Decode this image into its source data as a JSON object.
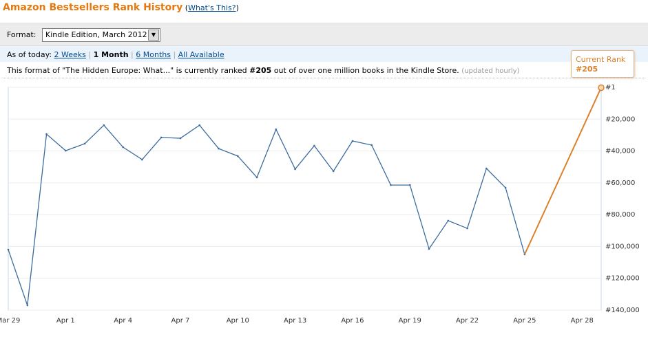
{
  "header": {
    "title": "Amazon Bestsellers Rank History",
    "link_open": "(",
    "link": "What's This?",
    "link_close": ")"
  },
  "format": {
    "label": "Format:",
    "selected": "Kindle Edition, March 2012"
  },
  "range": {
    "label": "As of today:",
    "options": [
      "2 Weeks",
      "1 Month",
      "6 Months",
      "All Available"
    ],
    "active": 1
  },
  "status": {
    "before": "This format of \"The Hidden Europe: What...\" is currently ranked",
    "after": "out of over one million books in the Kindle Store.",
    "note": "(updated hourly)"
  },
  "chart_data": {
    "type": "line",
    "categories": [
      "Mar 29",
      null,
      null,
      "Apr 1",
      null,
      null,
      "Apr 4",
      null,
      null,
      "Apr 7",
      null,
      null,
      "Apr 10",
      null,
      null,
      "Apr 13",
      null,
      null,
      "Apr 16",
      null,
      null,
      "Apr 19",
      null,
      null,
      "Apr 22",
      null,
      null,
      "Apr 25",
      null,
      null,
      "Apr 28",
      null
    ],
    "series": [
      {
        "color": "#3b6b9e",
        "values": [
          102000,
          137000,
          29400,
          39800,
          35400,
          23800,
          37600,
          45400,
          31500,
          32000,
          23800,
          38500,
          43200,
          56600,
          26400,
          51400,
          36700,
          52700,
          33700,
          36300,
          61400,
          61400,
          101500,
          83800,
          88600,
          51000,
          63100,
          105000,
          null,
          null,
          null,
          null
        ]
      },
      {
        "color": "#d9822b",
        "values": [
          null,
          null,
          null,
          null,
          null,
          null,
          null,
          null,
          null,
          null,
          null,
          null,
          null,
          null,
          null,
          null,
          null,
          null,
          null,
          null,
          null,
          null,
          null,
          null,
          null,
          null,
          null,
          null,
          null,
          null,
          null,
          205
        ],
        "value_labels": [
          null,
          null,
          null,
          null,
          null,
          null,
          null,
          null,
          null,
          null,
          null,
          null,
          null,
          null,
          null,
          null,
          null,
          null,
          null,
          null,
          null,
          null,
          null,
          null,
          null,
          null,
          null,
          null,
          null,
          null,
          null,
          "#205"
        ]
      }
    ],
    "annotation": "Current Rank",
    "ylim": [
      1,
      140000
    ],
    "y_inverted": true,
    "yticks": [
      {
        "value": 1,
        "label": "#1"
      },
      {
        "value": 20000,
        "label": "#20,000"
      },
      {
        "value": 40000,
        "label": "#40,000"
      },
      {
        "value": 60000,
        "label": "#60,000"
      },
      {
        "value": 80000,
        "label": "#80,000"
      },
      {
        "value": 100000,
        "label": "#100,000"
      },
      {
        "value": 120000,
        "label": "#120,000"
      },
      {
        "value": 140000,
        "label": "#140,000"
      }
    ],
    "grid": true
  }
}
